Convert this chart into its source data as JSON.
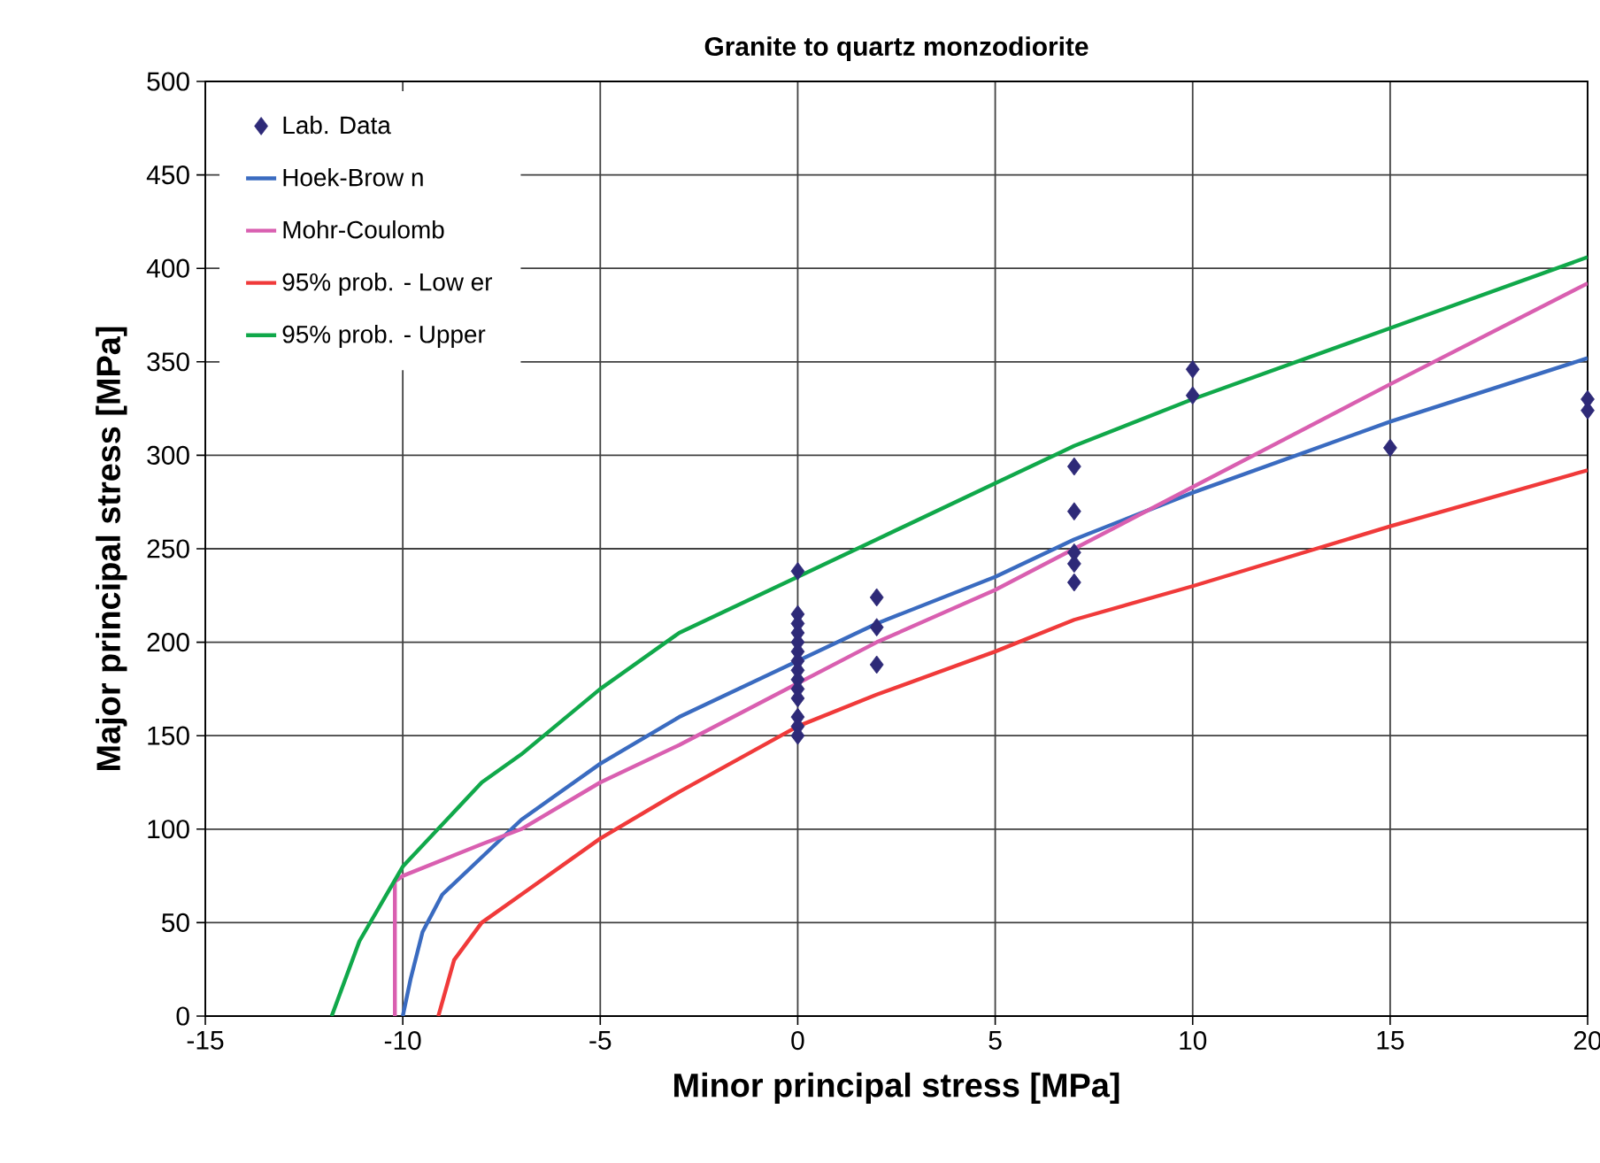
{
  "chart_data": {
    "type": "line",
    "title": "Granite to quartz monzodiorite",
    "xlabel": "Minor principal stress [MPa]",
    "ylabel": "Major principal stress [MPa]",
    "xlim": [
      -15,
      20
    ],
    "ylim": [
      0,
      500
    ],
    "xticks": [
      -15,
      -10,
      -5,
      0,
      5,
      10,
      15,
      20
    ],
    "yticks": [
      0,
      50,
      100,
      150,
      200,
      250,
      300,
      350,
      400,
      450,
      500
    ],
    "grid": true,
    "legend": "top left",
    "series": [
      {
        "name": "Lab. Data",
        "type": "scatter",
        "marker": "diamond",
        "color": "#2e2a78",
        "x": [
          0,
          0,
          0,
          0,
          0,
          0,
          0,
          0,
          0,
          0,
          0,
          0,
          0,
          0,
          2,
          2,
          2,
          7,
          7,
          7,
          7,
          7,
          10,
          10,
          15,
          20,
          20
        ],
        "values": [
          238,
          215,
          210,
          205,
          200,
          195,
          190,
          185,
          180,
          175,
          170,
          160,
          155,
          150,
          224,
          208,
          188,
          294,
          270,
          248,
          242,
          232,
          346,
          332,
          304,
          330,
          324
        ]
      },
      {
        "name": "Hoek-Brow n",
        "color": "#3a6bc0",
        "x": [
          -10,
          -9.8,
          -9.5,
          -9,
          -8,
          -7,
          -6,
          -5,
          -3,
          0,
          2,
          5,
          7,
          10,
          15,
          20
        ],
        "values": [
          0,
          20,
          45,
          65,
          85,
          105,
          120,
          135,
          160,
          190,
          210,
          235,
          255,
          280,
          318,
          352
        ]
      },
      {
        "name": "Mohr-Coulomb",
        "color": "#d95fb0",
        "x": [
          -10.2,
          -10.2,
          -10,
          -8,
          -7,
          -5,
          -3,
          0,
          2,
          5,
          7,
          10,
          15,
          20
        ],
        "values": [
          0,
          72,
          75,
          92,
          100,
          125,
          145,
          178,
          200,
          228,
          250,
          283,
          338,
          392
        ]
      },
      {
        "name": "95% prob. - Low er",
        "color": "#f03a3a",
        "x": [
          -9.1,
          -8.9,
          -8.7,
          -8,
          -7,
          -5,
          -3,
          0,
          2,
          5,
          7,
          10,
          15,
          20
        ],
        "values": [
          0,
          15,
          30,
          50,
          65,
          95,
          120,
          155,
          172,
          195,
          212,
          230,
          262,
          292
        ]
      },
      {
        "name": "95% prob. - Upper",
        "color": "#10a84a",
        "x": [
          -11.8,
          -11.1,
          -10,
          -8,
          -7,
          -5,
          -3,
          0,
          2,
          5,
          7,
          10,
          15,
          20
        ],
        "values": [
          0,
          40,
          80,
          125,
          140,
          175,
          205,
          235,
          255,
          285,
          305,
          330,
          368,
          406
        ]
      }
    ]
  }
}
